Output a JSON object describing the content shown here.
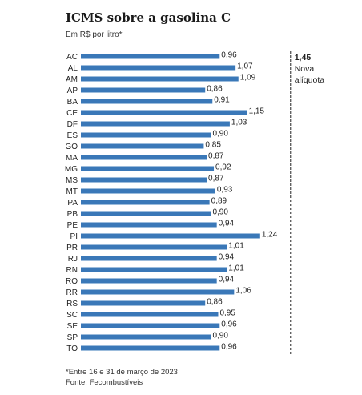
{
  "chart_data": {
    "type": "bar",
    "orientation": "horizontal",
    "title": "ICMS sobre a gasolina C",
    "subtitle": "Em R$ por litro*",
    "categories": [
      "AC",
      "AL",
      "AM",
      "AP",
      "BA",
      "CE",
      "DF",
      "ES",
      "GO",
      "MA",
      "MG",
      "MS",
      "MT",
      "PA",
      "PB",
      "PE",
      "PI",
      "PR",
      "RJ",
      "RN",
      "RO",
      "RR",
      "RS",
      "SC",
      "SE",
      "SP",
      "TO"
    ],
    "values": [
      0.96,
      1.07,
      1.09,
      0.86,
      0.91,
      1.15,
      1.03,
      0.9,
      0.85,
      0.87,
      0.92,
      0.87,
      0.93,
      0.89,
      0.9,
      0.94,
      1.24,
      1.01,
      0.94,
      1.01,
      0.94,
      1.06,
      0.86,
      0.95,
      0.96,
      0.9,
      0.96
    ],
    "value_labels": [
      "0,96",
      "1,07",
      "1,09",
      "0,86",
      "0,91",
      "1,15",
      "1,03",
      "0,90",
      "0,85",
      "0,87",
      "0,92",
      "0,87",
      "0,93",
      "0,89",
      "0,90",
      "0,94",
      "1,24",
      "1,01",
      "0,94",
      "1,01",
      "0,94",
      "1,06",
      "0,86",
      "0,95",
      "0,96",
      "0,90",
      "0,96"
    ],
    "reference_line": {
      "value": 1.45,
      "value_label": "1,45",
      "label_lines": [
        "Nova",
        "alíquota"
      ],
      "style": "dashed"
    },
    "xlim": [
      0,
      1.45
    ],
    "grid": false,
    "bar_color": "#3a78b8"
  },
  "footnote": "*Entre 16 e 31 de março de 2023",
  "source": "Fonte: Fecombustíveis"
}
